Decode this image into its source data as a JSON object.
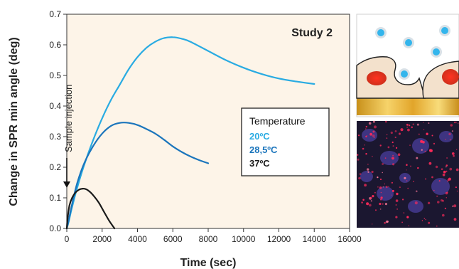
{
  "chart_data": {
    "type": "line",
    "title": "Study 2",
    "xlabel": "Time (sec)",
    "ylabel": "Change in SPR min angle (deg)",
    "xlim": [
      0,
      16000
    ],
    "ylim": [
      0,
      0.7
    ],
    "xticks": [
      "0",
      "2000",
      "4000",
      "6000",
      "8000",
      "10000",
      "12000",
      "14000",
      "16000"
    ],
    "yticks": [
      "0.0",
      "0.1",
      "0.2",
      "0.3",
      "0.4",
      "0.5",
      "0.6",
      "0.7"
    ],
    "legend": {
      "title": "Temperature",
      "placement": "center-right"
    },
    "annotation": {
      "text": "Sample injection",
      "x": 0,
      "y": 0.13
    },
    "series": [
      {
        "name": "20ºC",
        "color": "#29abe2",
        "x": [
          0,
          100,
          300,
          600,
          1000,
          1500,
          2000,
          2500,
          3000,
          3500,
          4000,
          4500,
          5000,
          5500,
          6000,
          6500,
          7000,
          8000,
          9000,
          10000,
          11000,
          12000,
          13000,
          14000
        ],
        "y": [
          0.0,
          0.02,
          0.07,
          0.135,
          0.21,
          0.29,
          0.36,
          0.42,
          0.47,
          0.52,
          0.56,
          0.59,
          0.61,
          0.622,
          0.625,
          0.62,
          0.61,
          0.58,
          0.55,
          0.525,
          0.505,
          0.49,
          0.48,
          0.472
        ]
      },
      {
        "name": "28,5ºC",
        "color": "#1b75bc",
        "x": [
          0,
          100,
          300,
          600,
          1000,
          1500,
          2000,
          2500,
          3000,
          3500,
          4000,
          4500,
          5000,
          5500,
          6000,
          6500,
          7000,
          7500,
          8000
        ],
        "y": [
          0.0,
          0.025,
          0.08,
          0.15,
          0.215,
          0.27,
          0.31,
          0.335,
          0.345,
          0.345,
          0.338,
          0.325,
          0.31,
          0.29,
          0.268,
          0.25,
          0.235,
          0.223,
          0.213
        ]
      },
      {
        "name": "37ºC",
        "color": "#1a1a1a",
        "x": [
          0,
          50,
          150,
          300,
          500,
          700,
          900,
          1100,
          1300,
          1500,
          1800,
          2100,
          2400,
          2700
        ],
        "y": [
          0.0,
          0.035,
          0.075,
          0.1,
          0.118,
          0.127,
          0.13,
          0.128,
          0.12,
          0.108,
          0.085,
          0.055,
          0.025,
          0.0
        ]
      }
    ]
  },
  "side_images": [
    {
      "kind": "schematic illustration",
      "colors": [
        "#4fc3f7",
        "#e8402a",
        "#f2dfc7",
        "#e8a317"
      ]
    },
    {
      "kind": "fluorescence micrograph",
      "colors": [
        "#1a1630",
        "#ff2a5a",
        "#5a4cb0"
      ]
    }
  ]
}
